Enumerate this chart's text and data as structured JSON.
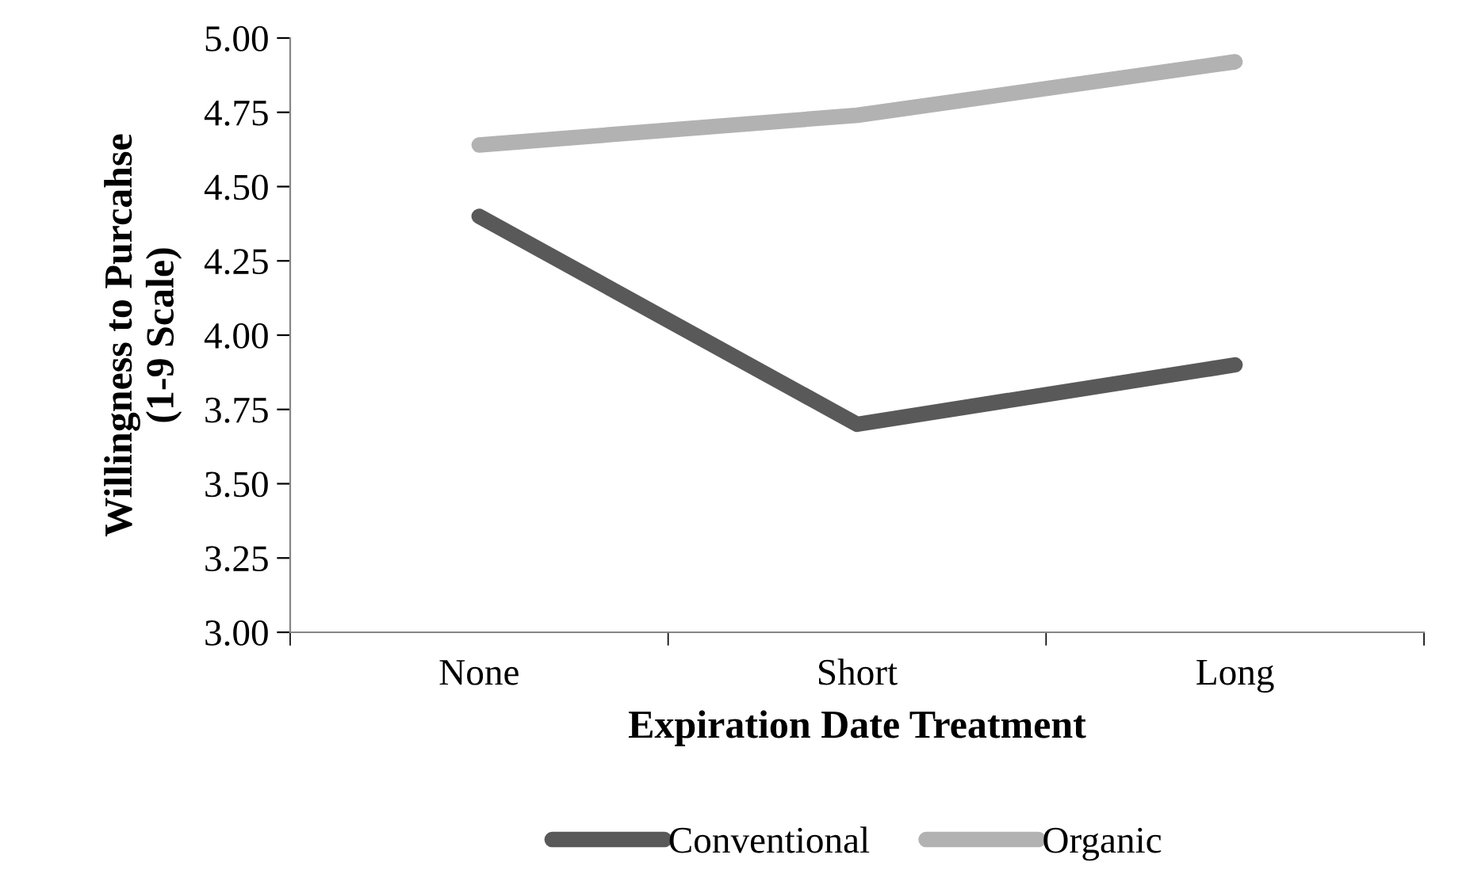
{
  "chart_data": {
    "type": "line",
    "xlabel": "Expiration Date Treatment",
    "ylabel": "Willingness to Purcahse\n(1-9 Scale)",
    "categories": [
      "None",
      "Short",
      "Long"
    ],
    "series": [
      {
        "name": "Conventional",
        "color": "#595959",
        "values": [
          4.4,
          3.7,
          3.9
        ]
      },
      {
        "name": "Organic",
        "color": "#b2b2b2",
        "values": [
          4.64,
          4.74,
          4.92
        ]
      }
    ],
    "ylim": [
      3,
      5
    ],
    "yticks": [
      {
        "value": 3,
        "label": "3.00"
      },
      {
        "value": 3.25,
        "label": "3.25"
      },
      {
        "value": 3.5,
        "label": "3.50"
      },
      {
        "value": 3.75,
        "label": "3.75"
      },
      {
        "value": 4,
        "label": "4.00"
      },
      {
        "value": 4.25,
        "label": "4.25"
      },
      {
        "value": 4.5,
        "label": "4.50"
      },
      {
        "value": 4.75,
        "label": "4.75"
      },
      {
        "value": 5,
        "label": "5.00"
      }
    ],
    "grid": false,
    "legend": "bottom",
    "marker": "none",
    "line_style": "solid"
  }
}
